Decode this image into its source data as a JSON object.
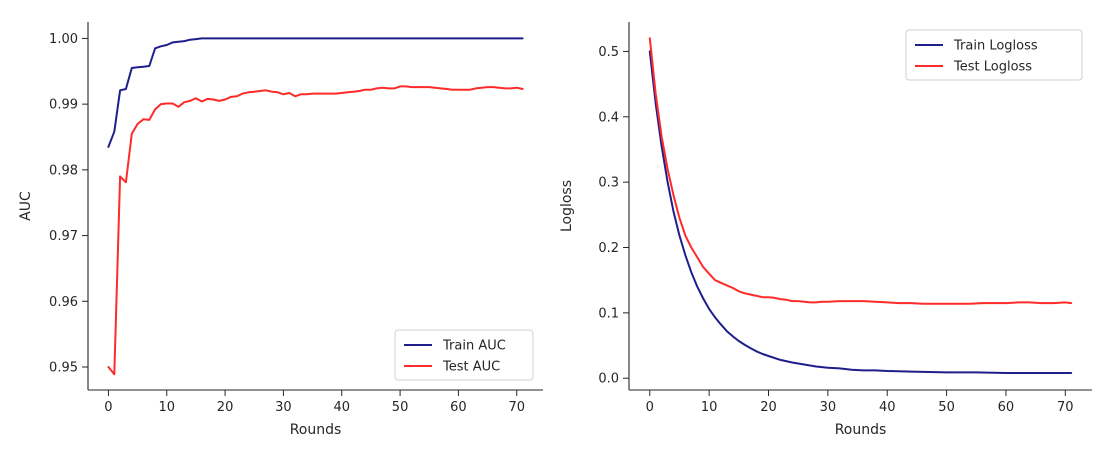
{
  "colors": {
    "train": "#1f1f8c",
    "test": "#ff2a2a",
    "axis": "#262626"
  },
  "chart_data": [
    {
      "type": "line",
      "xlabel": "Rounds",
      "ylabel": "AUC",
      "xlim": [
        -3.5,
        74.5
      ],
      "ylim": [
        0.9465,
        1.0025
      ],
      "xticks": [
        0,
        10,
        20,
        30,
        40,
        50,
        60,
        70
      ],
      "xtick_labels": [
        "0",
        "10",
        "20",
        "30",
        "40",
        "50",
        "60",
        "70"
      ],
      "yticks": [
        0.95,
        0.96,
        0.97,
        0.98,
        0.99,
        1.0
      ],
      "ytick_labels": [
        "0.95",
        "0.96",
        "0.97",
        "0.98",
        "0.99",
        "1.00"
      ],
      "grid": false,
      "legend_position": "lower-right",
      "series": [
        {
          "name": "Train AUC",
          "color": "#1f1f8c",
          "x": [
            0,
            1,
            2,
            3,
            4,
            5,
            6,
            7,
            8,
            9,
            10,
            11,
            12,
            13,
            14,
            15,
            16,
            17,
            18,
            19,
            20,
            22,
            24,
            26,
            28,
            30,
            35,
            40,
            45,
            50,
            55,
            60,
            65,
            71
          ],
          "y": [
            0.9835,
            0.9858,
            0.9921,
            0.9923,
            0.9955,
            0.9956,
            0.9957,
            0.9958,
            0.9985,
            0.9988,
            0.999,
            0.9994,
            0.9995,
            0.9996,
            0.9998,
            0.9999,
            1.0,
            1.0,
            1.0,
            1.0,
            1.0,
            1.0,
            1.0,
            1.0,
            1.0,
            1.0,
            1.0,
            1.0,
            1.0,
            1.0,
            1.0,
            1.0,
            1.0,
            1.0
          ]
        },
        {
          "name": "Test AUC",
          "color": "#ff2a2a",
          "x": [
            0,
            1,
            2,
            3,
            4,
            5,
            6,
            7,
            8,
            9,
            10,
            11,
            12,
            13,
            14,
            15,
            16,
            17,
            18,
            19,
            20,
            21,
            22,
            23,
            24,
            25,
            26,
            27,
            28,
            29,
            30,
            31,
            32,
            33,
            34,
            35,
            36,
            37,
            38,
            39,
            40,
            41,
            42,
            43,
            44,
            45,
            46,
            47,
            48,
            49,
            50,
            51,
            52,
            53,
            54,
            55,
            56,
            57,
            58,
            59,
            60,
            61,
            62,
            63,
            64,
            65,
            66,
            67,
            68,
            69,
            70,
            71
          ],
          "y": [
            0.95,
            0.9489,
            0.979,
            0.9781,
            0.9855,
            0.987,
            0.9877,
            0.9876,
            0.9892,
            0.99,
            0.9901,
            0.9901,
            0.9896,
            0.9903,
            0.9905,
            0.9909,
            0.9904,
            0.9908,
            0.9907,
            0.9905,
            0.9907,
            0.9911,
            0.9912,
            0.9916,
            0.9918,
            0.9919,
            0.992,
            0.9921,
            0.9919,
            0.9918,
            0.9915,
            0.9917,
            0.9912,
            0.9915,
            0.9915,
            0.9916,
            0.9916,
            0.9916,
            0.9916,
            0.9916,
            0.9917,
            0.9918,
            0.9919,
            0.992,
            0.9922,
            0.9922,
            0.9924,
            0.9925,
            0.9924,
            0.9924,
            0.9927,
            0.9927,
            0.9926,
            0.9926,
            0.9926,
            0.9926,
            0.9925,
            0.9924,
            0.9923,
            0.9922,
            0.9922,
            0.9922,
            0.9922,
            0.9924,
            0.9925,
            0.9926,
            0.9926,
            0.9925,
            0.9924,
            0.9924,
            0.9925,
            0.9923
          ]
        }
      ]
    },
    {
      "type": "line",
      "xlabel": "Rounds",
      "ylabel": "Logloss",
      "xlim": [
        -3.5,
        74.5
      ],
      "ylim": [
        -0.018,
        0.545
      ],
      "xticks": [
        0,
        10,
        20,
        30,
        40,
        50,
        60,
        70
      ],
      "xtick_labels": [
        "0",
        "10",
        "20",
        "30",
        "40",
        "50",
        "60",
        "70"
      ],
      "yticks": [
        0.0,
        0.1,
        0.2,
        0.3,
        0.4,
        0.5
      ],
      "ytick_labels": [
        "0.0",
        "0.1",
        "0.2",
        "0.3",
        "0.4",
        "0.5"
      ],
      "grid": false,
      "legend_position": "upper-right",
      "series": [
        {
          "name": "Train Logloss",
          "color": "#1f1f8c",
          "x": [
            0,
            1,
            2,
            3,
            4,
            5,
            6,
            7,
            8,
            9,
            10,
            11,
            12,
            13,
            14,
            15,
            16,
            17,
            18,
            19,
            20,
            22,
            24,
            26,
            28,
            30,
            32,
            34,
            36,
            38,
            40,
            45,
            50,
            55,
            60,
            65,
            71
          ],
          "y": [
            0.5,
            0.42,
            0.355,
            0.3,
            0.255,
            0.218,
            0.188,
            0.162,
            0.14,
            0.122,
            0.106,
            0.093,
            0.082,
            0.072,
            0.064,
            0.057,
            0.051,
            0.046,
            0.041,
            0.037,
            0.034,
            0.028,
            0.024,
            0.021,
            0.018,
            0.016,
            0.015,
            0.013,
            0.012,
            0.012,
            0.011,
            0.01,
            0.009,
            0.009,
            0.008,
            0.008,
            0.008
          ]
        },
        {
          "name": "Test Logloss",
          "color": "#ff2a2a",
          "x": [
            0,
            1,
            2,
            3,
            4,
            5,
            6,
            7,
            8,
            9,
            10,
            11,
            12,
            13,
            14,
            15,
            16,
            17,
            18,
            19,
            20,
            21,
            22,
            23,
            24,
            25,
            26,
            27,
            28,
            29,
            30,
            32,
            34,
            36,
            38,
            40,
            42,
            44,
            46,
            48,
            50,
            52,
            54,
            56,
            58,
            60,
            62,
            64,
            66,
            68,
            70,
            71
          ],
          "y": [
            0.52,
            0.435,
            0.37,
            0.32,
            0.28,
            0.245,
            0.218,
            0.2,
            0.185,
            0.17,
            0.16,
            0.15,
            0.146,
            0.142,
            0.138,
            0.133,
            0.13,
            0.128,
            0.126,
            0.124,
            0.124,
            0.123,
            0.121,
            0.12,
            0.118,
            0.118,
            0.117,
            0.116,
            0.116,
            0.117,
            0.117,
            0.118,
            0.118,
            0.118,
            0.117,
            0.116,
            0.115,
            0.115,
            0.114,
            0.114,
            0.114,
            0.114,
            0.114,
            0.115,
            0.115,
            0.115,
            0.116,
            0.116,
            0.115,
            0.115,
            0.116,
            0.115
          ]
        }
      ]
    }
  ]
}
